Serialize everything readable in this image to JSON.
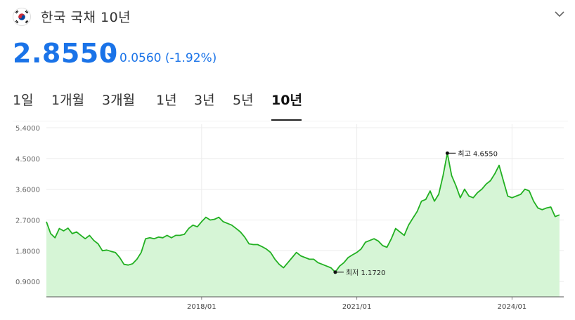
{
  "header": {
    "title": "한국 국채 10년",
    "flag_icon": "south-korea-flag-icon",
    "expand_icon": "chevron-down-icon"
  },
  "quote": {
    "price": "2.8550",
    "change": "0.0560 (-1.92%)",
    "direction": "down",
    "color": "#1a73e8"
  },
  "tabs": [
    {
      "label": "1일"
    },
    {
      "label": "1개월"
    },
    {
      "label": "3개월"
    },
    {
      "label": "1년"
    },
    {
      "label": "3년"
    },
    {
      "label": "5년"
    },
    {
      "label": "10년",
      "active": true
    }
  ],
  "chart_data": {
    "type": "area",
    "y_ticks": [
      "5.4000",
      "4.5000",
      "3.6000",
      "2.7000",
      "1.8000",
      "0.9000"
    ],
    "ylim": [
      0.45,
      5.4
    ],
    "x_ticks": [
      {
        "label": "2018/01",
        "x": "2018-01"
      },
      {
        "label": "2021/01",
        "x": "2021-01"
      },
      {
        "label": "2024/01",
        "x": "2024-01"
      }
    ],
    "x_range": [
      "2015-01",
      "2025-01"
    ],
    "grid": true,
    "line_color": "#22b022",
    "fill_color": "#d6f5d6",
    "annotations": [
      {
        "label": "최고 4.6550",
        "x": "2022-10",
        "y": 4.655
      },
      {
        "label": "최저 1.1720",
        "x": "2020-08",
        "y": 1.172
      }
    ],
    "series": [
      {
        "points": [
          [
            "2015-01",
            2.65
          ],
          [
            "2015-02",
            2.3
          ],
          [
            "2015-03",
            2.18
          ],
          [
            "2015-04",
            2.45
          ],
          [
            "2015-05",
            2.38
          ],
          [
            "2015-06",
            2.46
          ],
          [
            "2015-07",
            2.3
          ],
          [
            "2015-08",
            2.35
          ],
          [
            "2015-09",
            2.25
          ],
          [
            "2015-10",
            2.15
          ],
          [
            "2015-11",
            2.25
          ],
          [
            "2015-12",
            2.1
          ],
          [
            "2016-01",
            2.0
          ],
          [
            "2016-02",
            1.8
          ],
          [
            "2016-03",
            1.82
          ],
          [
            "2016-04",
            1.78
          ],
          [
            "2016-05",
            1.75
          ],
          [
            "2016-06",
            1.6
          ],
          [
            "2016-07",
            1.4
          ],
          [
            "2016-08",
            1.38
          ],
          [
            "2016-09",
            1.42
          ],
          [
            "2016-10",
            1.55
          ],
          [
            "2016-11",
            1.75
          ],
          [
            "2016-12",
            2.15
          ],
          [
            "2017-01",
            2.18
          ],
          [
            "2017-02",
            2.15
          ],
          [
            "2017-03",
            2.2
          ],
          [
            "2017-04",
            2.18
          ],
          [
            "2017-05",
            2.25
          ],
          [
            "2017-06",
            2.18
          ],
          [
            "2017-07",
            2.25
          ],
          [
            "2017-08",
            2.25
          ],
          [
            "2017-09",
            2.28
          ],
          [
            "2017-10",
            2.45
          ],
          [
            "2017-11",
            2.55
          ],
          [
            "2017-12",
            2.5
          ],
          [
            "2018-01",
            2.65
          ],
          [
            "2018-02",
            2.78
          ],
          [
            "2018-03",
            2.7
          ],
          [
            "2018-04",
            2.72
          ],
          [
            "2018-05",
            2.78
          ],
          [
            "2018-06",
            2.65
          ],
          [
            "2018-07",
            2.6
          ],
          [
            "2018-08",
            2.55
          ],
          [
            "2018-09",
            2.45
          ],
          [
            "2018-10",
            2.35
          ],
          [
            "2018-11",
            2.2
          ],
          [
            "2018-12",
            2.0
          ],
          [
            "2019-01",
            1.98
          ],
          [
            "2019-02",
            1.98
          ],
          [
            "2019-03",
            1.92
          ],
          [
            "2019-04",
            1.85
          ],
          [
            "2019-05",
            1.75
          ],
          [
            "2019-06",
            1.55
          ],
          [
            "2019-07",
            1.4
          ],
          [
            "2019-08",
            1.3
          ],
          [
            "2019-09",
            1.45
          ],
          [
            "2019-10",
            1.6
          ],
          [
            "2019-11",
            1.75
          ],
          [
            "2019-12",
            1.65
          ],
          [
            "2020-01",
            1.6
          ],
          [
            "2020-02",
            1.55
          ],
          [
            "2020-03",
            1.55
          ],
          [
            "2020-04",
            1.45
          ],
          [
            "2020-05",
            1.4
          ],
          [
            "2020-06",
            1.35
          ],
          [
            "2020-07",
            1.3
          ],
          [
            "2020-08",
            1.172
          ],
          [
            "2020-09",
            1.35
          ],
          [
            "2020-10",
            1.45
          ],
          [
            "2020-11",
            1.6
          ],
          [
            "2020-12",
            1.68
          ],
          [
            "2021-01",
            1.75
          ],
          [
            "2021-02",
            1.85
          ],
          [
            "2021-03",
            2.05
          ],
          [
            "2021-04",
            2.1
          ],
          [
            "2021-05",
            2.15
          ],
          [
            "2021-06",
            2.08
          ],
          [
            "2021-07",
            1.95
          ],
          [
            "2021-08",
            1.9
          ],
          [
            "2021-09",
            2.15
          ],
          [
            "2021-10",
            2.45
          ],
          [
            "2021-11",
            2.35
          ],
          [
            "2021-12",
            2.25
          ],
          [
            "2022-01",
            2.55
          ],
          [
            "2022-02",
            2.75
          ],
          [
            "2022-03",
            2.95
          ],
          [
            "2022-04",
            3.25
          ],
          [
            "2022-05",
            3.3
          ],
          [
            "2022-06",
            3.55
          ],
          [
            "2022-07",
            3.25
          ],
          [
            "2022-08",
            3.45
          ],
          [
            "2022-09",
            4.0
          ],
          [
            "2022-10",
            4.655
          ],
          [
            "2022-11",
            4.0
          ],
          [
            "2022-12",
            3.7
          ],
          [
            "2023-01",
            3.35
          ],
          [
            "2023-02",
            3.6
          ],
          [
            "2023-03",
            3.4
          ],
          [
            "2023-04",
            3.35
          ],
          [
            "2023-05",
            3.5
          ],
          [
            "2023-06",
            3.6
          ],
          [
            "2023-07",
            3.75
          ],
          [
            "2023-08",
            3.85
          ],
          [
            "2023-09",
            4.05
          ],
          [
            "2023-10",
            4.3
          ],
          [
            "2023-11",
            3.85
          ],
          [
            "2023-12",
            3.4
          ],
          [
            "2024-01",
            3.35
          ],
          [
            "2024-02",
            3.4
          ],
          [
            "2024-03",
            3.45
          ],
          [
            "2024-04",
            3.6
          ],
          [
            "2024-05",
            3.55
          ],
          [
            "2024-06",
            3.25
          ],
          [
            "2024-07",
            3.05
          ],
          [
            "2024-08",
            3.0
          ],
          [
            "2024-09",
            3.05
          ],
          [
            "2024-10",
            3.08
          ],
          [
            "2024-11",
            2.8
          ],
          [
            "2024-12",
            2.85
          ]
        ]
      }
    ]
  }
}
